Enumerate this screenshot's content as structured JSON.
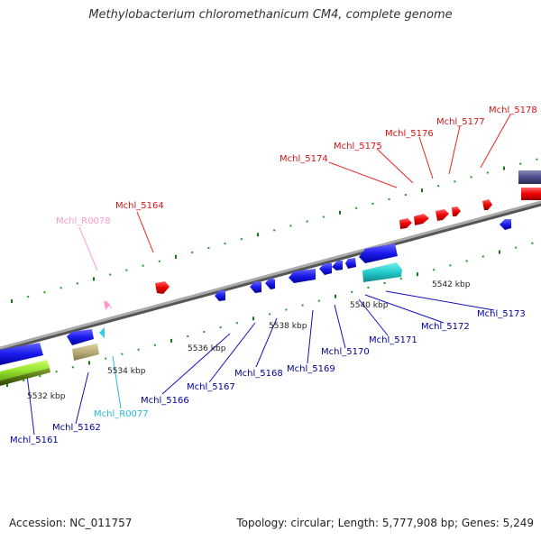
{
  "title": "Methylobacterium chloromethanicum CM4, complete genome",
  "footer": {
    "accession": "Accession: NC_011757",
    "summary": "Topology: circular; Length: 5,777,908 bp; Genes: 5,249"
  },
  "colors": {
    "forward_gene": "#ff0000",
    "reverse_gene": "#0000ee",
    "forward_rna": "#ff99cc",
    "reverse_rna": "#33ccee",
    "backbone": "#888888",
    "tick_major": "#117711",
    "tick_minor": "#229922"
  },
  "kbp_ticks": [
    "5532 kbp",
    "5534 kbp",
    "5536 kbp",
    "5538 kbp",
    "5540 kbp",
    "5542 kbp"
  ],
  "forward_labels": [
    "Mchl_R0078",
    "Mchl_5164",
    "Mchl_5174",
    "Mchl_5175",
    "Mchl_5176",
    "Mchl_5177",
    "Mchl_5178"
  ],
  "reverse_labels": [
    "Mchl_5161",
    "Mchl_5162",
    "Mchl_R0077",
    "Mchl_5166",
    "Mchl_5167",
    "Mchl_5168",
    "Mchl_5169",
    "Mchl_5170",
    "Mchl_5171",
    "Mchl_5172",
    "Mchl_5173"
  ]
}
